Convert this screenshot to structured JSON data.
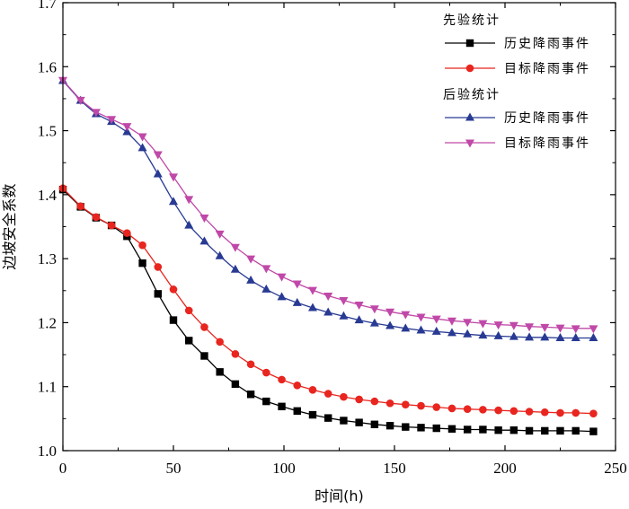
{
  "chart_data": {
    "type": "line",
    "xlabel": "时间(h)",
    "ylabel": "边坡安全系数",
    "xlim": [
      0,
      250
    ],
    "ylim": [
      1.0,
      1.7
    ],
    "xticks": [
      0,
      50,
      100,
      150,
      200,
      250
    ],
    "yticks": [
      1.0,
      1.1,
      1.2,
      1.3,
      1.4,
      1.5,
      1.6,
      1.7
    ],
    "ytick_labels": [
      "1.0",
      "1.1",
      "1.2",
      "1.3",
      "1.4",
      "1.5",
      "1.6",
      "1.7"
    ],
    "xtick_labels": [
      "0",
      "50",
      "100",
      "150",
      "200",
      "250"
    ],
    "grid": false,
    "legend_position": "top-right",
    "legend_groups": [
      {
        "title": "先验统计",
        "series": [
          0,
          1
        ]
      },
      {
        "title": "后验统计",
        "series": [
          2,
          3
        ]
      }
    ],
    "series": [
      {
        "name": "历史降雨事件",
        "color": "#000000",
        "marker": "square",
        "x": [
          0,
          8,
          15,
          22,
          29,
          36,
          43,
          50,
          57,
          64,
          71,
          78,
          85,
          92,
          99,
          106,
          113,
          120,
          127,
          134,
          141,
          148,
          155,
          162,
          169,
          176,
          183,
          190,
          197,
          204,
          211,
          218,
          225,
          232,
          240
        ],
        "y": [
          1.408,
          1.381,
          1.364,
          1.352,
          1.335,
          1.293,
          1.245,
          1.204,
          1.172,
          1.148,
          1.123,
          1.104,
          1.088,
          1.077,
          1.069,
          1.062,
          1.056,
          1.051,
          1.047,
          1.044,
          1.041,
          1.039,
          1.037,
          1.036,
          1.035,
          1.034,
          1.033,
          1.033,
          1.032,
          1.032,
          1.031,
          1.031,
          1.031,
          1.031,
          1.03
        ]
      },
      {
        "name": "目标降雨事件",
        "color": "#e8251f",
        "marker": "circle",
        "x": [
          0,
          8,
          15,
          22,
          29,
          36,
          43,
          50,
          57,
          64,
          71,
          78,
          85,
          92,
          99,
          106,
          113,
          120,
          127,
          134,
          141,
          148,
          155,
          162,
          169,
          176,
          183,
          190,
          197,
          204,
          211,
          218,
          225,
          232,
          240
        ],
        "y": [
          1.41,
          1.382,
          1.365,
          1.352,
          1.34,
          1.321,
          1.287,
          1.252,
          1.219,
          1.193,
          1.17,
          1.151,
          1.135,
          1.122,
          1.111,
          1.102,
          1.095,
          1.089,
          1.084,
          1.08,
          1.077,
          1.074,
          1.072,
          1.07,
          1.068,
          1.066,
          1.065,
          1.064,
          1.063,
          1.062,
          1.061,
          1.06,
          1.059,
          1.059,
          1.058
        ]
      },
      {
        "name": "历史降雨事件",
        "color": "#283a93",
        "marker": "triangle-up",
        "x": [
          0,
          8,
          15,
          22,
          29,
          36,
          43,
          50,
          57,
          64,
          71,
          78,
          85,
          92,
          99,
          106,
          113,
          120,
          127,
          134,
          141,
          148,
          155,
          162,
          169,
          176,
          183,
          190,
          197,
          204,
          211,
          218,
          225,
          232,
          240
        ],
        "y": [
          1.578,
          1.547,
          1.526,
          1.514,
          1.498,
          1.473,
          1.432,
          1.389,
          1.352,
          1.327,
          1.304,
          1.283,
          1.266,
          1.252,
          1.24,
          1.231,
          1.223,
          1.216,
          1.21,
          1.204,
          1.199,
          1.195,
          1.191,
          1.188,
          1.186,
          1.184,
          1.182,
          1.18,
          1.179,
          1.178,
          1.177,
          1.177,
          1.176,
          1.176,
          1.176
        ]
      },
      {
        "name": "目标降雨事件",
        "color": "#c048a8",
        "marker": "triangle-down",
        "x": [
          0,
          8,
          15,
          22,
          29,
          36,
          43,
          50,
          57,
          64,
          71,
          78,
          85,
          92,
          99,
          106,
          113,
          120,
          127,
          134,
          141,
          148,
          155,
          162,
          169,
          176,
          183,
          190,
          197,
          204,
          211,
          218,
          225,
          232,
          240
        ],
        "y": [
          1.579,
          1.548,
          1.529,
          1.518,
          1.507,
          1.491,
          1.463,
          1.428,
          1.393,
          1.364,
          1.339,
          1.318,
          1.3,
          1.285,
          1.272,
          1.261,
          1.251,
          1.242,
          1.235,
          1.228,
          1.222,
          1.217,
          1.213,
          1.209,
          1.206,
          1.203,
          1.201,
          1.199,
          1.197,
          1.196,
          1.194,
          1.193,
          1.192,
          1.191,
          1.191
        ]
      }
    ]
  }
}
